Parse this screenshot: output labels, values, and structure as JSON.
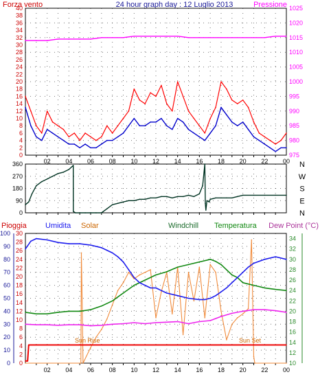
{
  "colors": {
    "wind_avg": "#0000cc",
    "wind_gust": "#ff0000",
    "pressure": "#ff00ff",
    "direction": "#003322",
    "humidity": "#1a1aee",
    "solar": "#f08a3a",
    "windchill": "#1a6a2a",
    "temperature": "#118811",
    "dew_point": "#ee22ee",
    "rain": "#ee0000",
    "axis_red": "#cc0000",
    "axis_blue": "#1a1a99",
    "axis_green": "#2a8a2a",
    "axis_mauve": "#aa3399",
    "sun_label": "#cc6600",
    "frame": "#000000",
    "grid": "#000000"
  },
  "chart_data": [
    {
      "type": "line",
      "title": "24 hour graph day : 12 Luglio 2013",
      "ylabel": "Forza vento",
      "y2label": "Pressione",
      "ylim": [
        0,
        40
      ],
      "y2lim": [
        975,
        1025
      ],
      "y_ticks": [
        "0",
        "2",
        "4",
        "6",
        "8",
        "10",
        "12",
        "14",
        "16",
        "18",
        "20",
        "22",
        "24",
        "26",
        "28",
        "30",
        "32",
        "34",
        "36",
        "38",
        "40"
      ],
      "y2_ticks": [
        "975",
        "980",
        "985",
        "990",
        "995",
        "1000",
        "1005",
        "1010",
        "1015",
        "1020",
        "1025"
      ],
      "x_ticks": [
        "02",
        "04",
        "06",
        "08",
        "10",
        "12",
        "14",
        "16",
        "18",
        "20",
        "22",
        "00"
      ],
      "grid": true,
      "series": [
        {
          "key": "gust",
          "x": [
            0,
            0.5,
            1,
            1.5,
            2,
            2.5,
            3,
            3.5,
            4,
            4.5,
            5,
            5.5,
            6,
            6.5,
            7,
            7.5,
            8,
            8.5,
            9,
            9.5,
            10,
            10.5,
            11,
            11.5,
            12,
            12.5,
            13,
            13.5,
            14,
            14.5,
            15,
            15.5,
            16,
            16.5,
            17,
            17.5,
            18,
            18.5,
            19,
            19.5,
            20,
            20.5,
            21,
            21.5,
            22,
            22.5,
            23,
            23.5,
            24
          ],
          "values": [
            16,
            12,
            8,
            6,
            12,
            9,
            8,
            7,
            5,
            6,
            4,
            6,
            5,
            4,
            5,
            8,
            6,
            8,
            10,
            12,
            18,
            15,
            14,
            17,
            16,
            19,
            14,
            12,
            20,
            16,
            12,
            10,
            8,
            6,
            10,
            13,
            20,
            18,
            15,
            14,
            15,
            13,
            9,
            6,
            5,
            4,
            3,
            4,
            6
          ]
        },
        {
          "key": "avg",
          "x": [
            0,
            0.5,
            1,
            1.5,
            2,
            2.5,
            3,
            3.5,
            4,
            4.5,
            5,
            5.5,
            6,
            6.5,
            7,
            7.5,
            8,
            8.5,
            9,
            9.5,
            10,
            10.5,
            11,
            11.5,
            12,
            12.5,
            13,
            13.5,
            14,
            14.5,
            15,
            15.5,
            16,
            16.5,
            17,
            17.5,
            18,
            18.5,
            19,
            19.5,
            20,
            20.5,
            21,
            21.5,
            22,
            22.5,
            23,
            23.5,
            24
          ],
          "values": [
            13,
            8,
            5,
            4,
            7,
            6,
            5,
            4,
            3,
            3,
            2,
            3,
            2,
            2,
            3,
            4,
            4,
            5,
            6,
            8,
            10,
            8,
            8,
            9,
            9,
            10,
            8,
            7,
            10,
            9,
            7,
            6,
            5,
            4,
            6,
            8,
            13,
            11,
            9,
            8,
            9,
            7,
            5,
            4,
            3,
            2,
            1,
            2,
            2
          ]
        },
        {
          "key": "pressure",
          "x": [
            0,
            1,
            2,
            3,
            4,
            5,
            6,
            7,
            8,
            9,
            10,
            11,
            12,
            13,
            14,
            15,
            16,
            17,
            18,
            19,
            20,
            21,
            22,
            23,
            24
          ],
          "values": [
            1014,
            1014,
            1014,
            1014.5,
            1014.5,
            1014.5,
            1014.5,
            1015,
            1015,
            1015,
            1015.5,
            1015.5,
            1015.5,
            1015.5,
            1015.5,
            1015,
            1015,
            1015,
            1015,
            1015,
            1015,
            1015,
            1015,
            1015.5,
            1015.5
          ]
        }
      ]
    },
    {
      "type": "line",
      "ylim": [
        0,
        360
      ],
      "y_ticks": [
        "0",
        "90",
        "180",
        "270",
        "360"
      ],
      "compass": [
        "N",
        "W",
        "S",
        "E",
        "N"
      ],
      "x_ticks": [],
      "grid": true,
      "series": [
        {
          "key": "direction",
          "x": [
            0,
            0.3,
            0.6,
            1,
            1.5,
            2,
            2.5,
            3,
            3.5,
            4,
            4.4,
            4.41,
            4.6,
            5,
            5.5,
            6,
            6.5,
            7,
            7.5,
            8,
            8.5,
            9,
            9.5,
            10,
            10.5,
            11,
            11.5,
            12,
            12.5,
            13,
            13.5,
            14,
            14.5,
            15,
            15.5,
            16,
            16.3,
            16.5,
            16.55,
            16.6,
            16.7,
            16.9,
            17,
            17.5,
            18,
            18.5,
            19,
            19.5,
            20,
            21,
            22,
            23,
            24
          ],
          "values": [
            60,
            80,
            140,
            200,
            230,
            250,
            270,
            290,
            300,
            320,
            350,
            10,
            0,
            0,
            0,
            0,
            0,
            0,
            30,
            60,
            70,
            80,
            90,
            90,
            100,
            100,
            110,
            110,
            120,
            120,
            110,
            120,
            120,
            130,
            120,
            140,
            200,
            360,
            70,
            20,
            90,
            80,
            100,
            110,
            110,
            110,
            110,
            120,
            130,
            130,
            130,
            130,
            130
          ]
        }
      ]
    },
    {
      "type": "line",
      "legend": [
        "Pioggia",
        "Umidita",
        "Solar",
        "Windchill",
        "Temperatura",
        "Dew Point (°C)"
      ],
      "ylim": [
        0,
        100
      ],
      "y_ticks": [
        "0",
        "10",
        "20",
        "30",
        "40",
        "50",
        "60",
        "70",
        "80",
        "90",
        "100"
      ],
      "rain_ticks": [
        "0",
        "2",
        "4",
        "6",
        "8",
        "10",
        "12",
        "14",
        "16",
        "18",
        "20",
        "22",
        "24",
        "26",
        "28",
        "30"
      ],
      "temp_ticks": [
        "10",
        "12",
        "14",
        "16",
        "18",
        "20",
        "22",
        "24",
        "26",
        "28",
        "30",
        "32",
        "34"
      ],
      "x_ticks": [
        "02",
        "04",
        "06",
        "08",
        "10",
        "12",
        "14",
        "16",
        "18",
        "20",
        "22",
        "00"
      ],
      "annotations": [
        "Sun Rise",
        "Sun Set"
      ],
      "grid": true,
      "series": [
        {
          "key": "humidity",
          "x": [
            0,
            0.5,
            1,
            2,
            3,
            4,
            5,
            6,
            7,
            7.5,
            8,
            8.5,
            9,
            9.5,
            10,
            10.5,
            11,
            11.5,
            12,
            12.5,
            13,
            14,
            15,
            16,
            16.5,
            17,
            17.5,
            18,
            18.5,
            19,
            19.5,
            20,
            20.5,
            21,
            22,
            23,
            24
          ],
          "values": [
            88,
            94,
            96,
            95,
            93,
            92,
            92,
            91,
            89,
            87,
            85,
            82,
            78,
            72,
            66,
            62,
            60,
            58,
            58,
            56,
            54,
            52,
            50,
            49,
            49,
            50,
            52,
            55,
            58,
            62,
            66,
            70,
            74,
            77,
            80,
            82,
            80
          ]
        },
        {
          "key": "temperature",
          "x": [
            0,
            1,
            2,
            3,
            4,
            5,
            6,
            7,
            8,
            9,
            10,
            11,
            12,
            13,
            14,
            15,
            16,
            17,
            17.5,
            18,
            18.5,
            19,
            19.5,
            20,
            21,
            22,
            23,
            24
          ],
          "values": [
            19.8,
            19.5,
            19.5,
            19.8,
            20,
            20,
            20.3,
            21,
            22,
            23.5,
            25,
            26,
            27,
            27.6,
            28.5,
            29,
            29.5,
            30,
            29.6,
            29,
            28,
            27,
            26.5,
            25.5,
            25,
            24.5,
            24.2,
            24
          ]
        },
        {
          "key": "dew_point",
          "x": [
            0,
            1,
            2,
            3,
            4,
            5,
            6,
            7,
            8,
            9,
            10,
            11,
            12,
            13,
            14,
            15,
            16,
            17,
            18,
            19,
            20,
            21,
            22,
            23,
            24
          ],
          "values": [
            17.5,
            17.4,
            17.4,
            17.3,
            17.4,
            17.4,
            17.2,
            17.3,
            17.5,
            17.6,
            17.8,
            17.6,
            17.8,
            17.9,
            18,
            17.6,
            18,
            18.2,
            19,
            19.6,
            20,
            20.3,
            20.3,
            20.1,
            19.8
          ]
        },
        {
          "key": "solar",
          "x": [
            0,
            5.1,
            5.15,
            5.2,
            5.3,
            6,
            6.5,
            7,
            7.5,
            8,
            8.5,
            9,
            9.5,
            10,
            10.5,
            11,
            11.5,
            12,
            12.5,
            13,
            13.5,
            14,
            14.5,
            15,
            15.5,
            16,
            16.5,
            17,
            17.5,
            18,
            18.5,
            19,
            19.5,
            20,
            20.5,
            20.8,
            20.9,
            21,
            21.1,
            24
          ],
          "values": [
            0,
            0,
            85,
            60,
            0,
            12,
            20,
            26,
            34,
            45,
            56,
            62,
            70,
            65,
            68,
            70,
            72,
            35,
            55,
            70,
            38,
            74,
            22,
            70,
            48,
            74,
            35,
            76,
            70,
            40,
            18,
            30,
            35,
            38,
            42,
            95,
            50,
            5,
            0,
            0
          ]
        },
        {
          "key": "rain",
          "x": [
            0,
            0.2,
            0.3,
            24
          ],
          "values": [
            0.5,
            0.5,
            4.2,
            4.2
          ]
        }
      ]
    }
  ]
}
